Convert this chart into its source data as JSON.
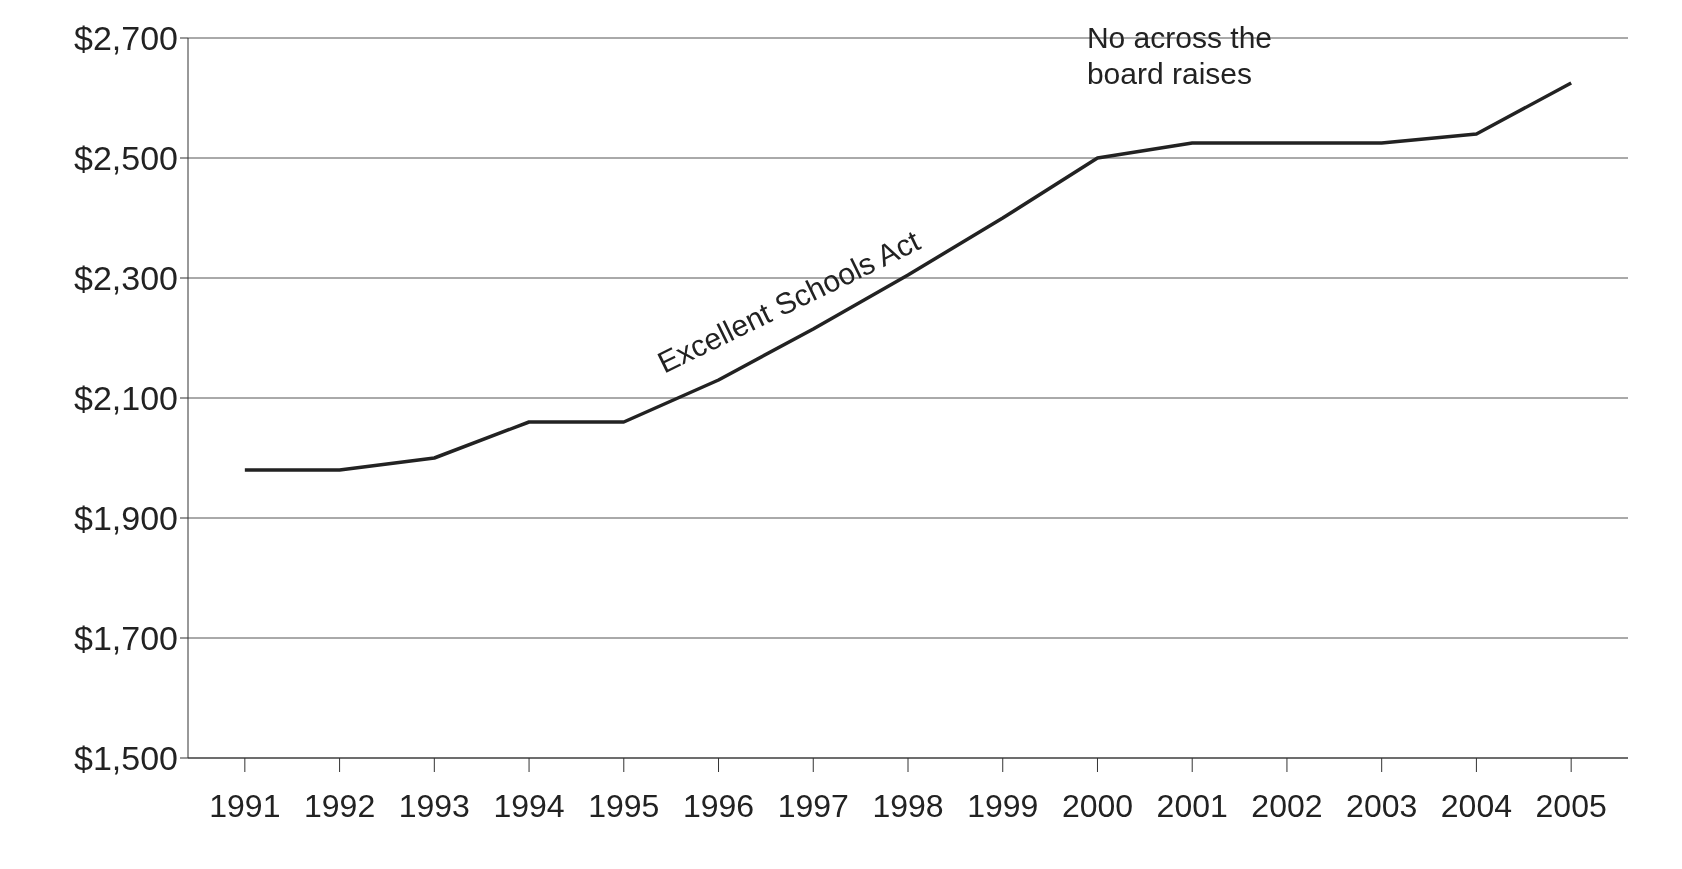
{
  "chart_data": {
    "type": "line",
    "categories": [
      "1991",
      "1992",
      "1993",
      "1994",
      "1995",
      "1996",
      "1997",
      "1998",
      "1999",
      "2000",
      "2001",
      "2002",
      "2003",
      "2004",
      "2005"
    ],
    "series": [
      {
        "color": "#222222",
        "values": [
          1980,
          1980,
          2000,
          2060,
          2060,
          2130,
          2215,
          2305,
          2400,
          2500,
          2525,
          2525,
          2525,
          2540,
          2625
        ]
      }
    ],
    "ylim": [
      1500,
      2700
    ],
    "yticks": [
      {
        "value": 1500,
        "label": "$1,500"
      },
      {
        "value": 1700,
        "label": "$1,700"
      },
      {
        "value": 1900,
        "label": "$1,900"
      },
      {
        "value": 2100,
        "label": "$2,100"
      },
      {
        "value": 2300,
        "label": "$2,300"
      },
      {
        "value": 2500,
        "label": "$2,500"
      },
      {
        "value": 2700,
        "label": "$2,700"
      }
    ],
    "grid": "y",
    "marker": "none",
    "line_style": "solid",
    "legend": false,
    "annotations": [
      {
        "text": "Excellent Schools Act",
        "x": "1997",
        "y": 2215
      },
      {
        "text": "No across the board raises",
        "x": "2002",
        "y": 2525
      }
    ]
  }
}
